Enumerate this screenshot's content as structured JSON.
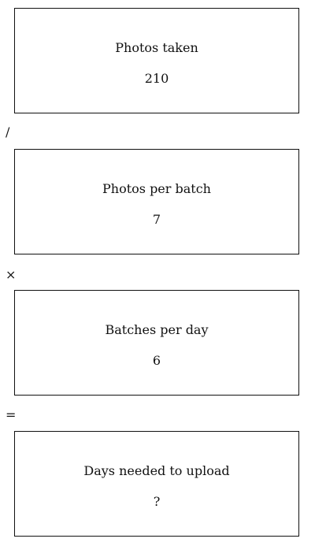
{
  "steps": [
    {
      "label": "Photos taken",
      "value": "210"
    },
    {
      "label": "Photos per batch",
      "value": "7"
    },
    {
      "label": "Batches per day",
      "value": "6"
    },
    {
      "label": "Days needed to upload",
      "value": "?"
    }
  ],
  "operators": [
    "/",
    "×",
    "="
  ]
}
